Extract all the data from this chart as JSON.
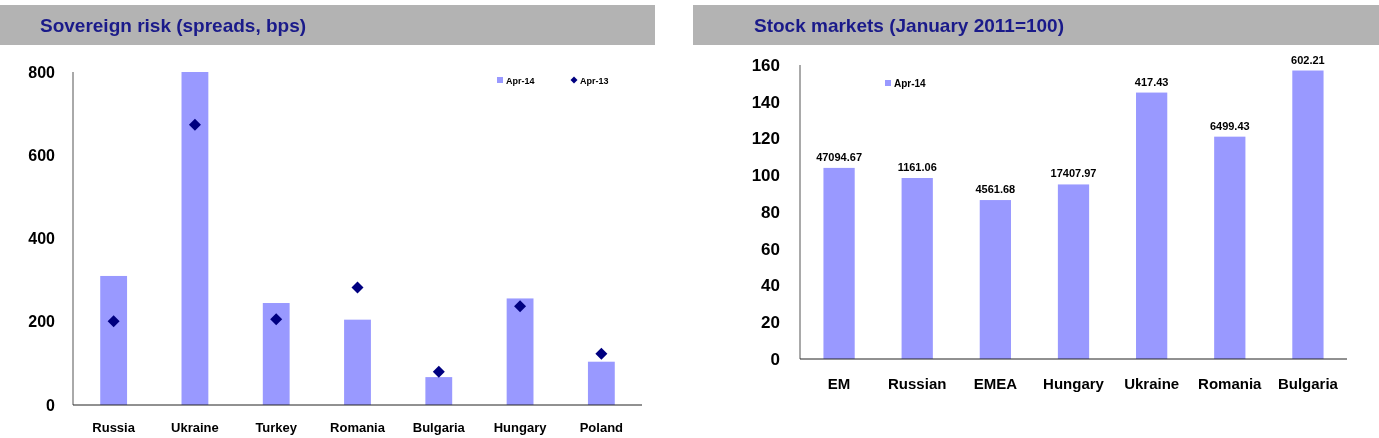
{
  "chart_data": [
    {
      "type": "bar",
      "title": "Sovereign risk (spreads, bps)",
      "categories": [
        "Russia",
        "Ukraine",
        "Turkey",
        "Romania",
        "Bulgaria",
        "Hungary",
        "Poland"
      ],
      "series": [
        {
          "name": "Apr-14",
          "color": "#9999ff",
          "values": [
            310,
            800,
            245,
            205,
            67,
            256,
            104
          ]
        },
        {
          "name": "Apr-13",
          "type": "scatter",
          "color": "#000080",
          "marker": "diamond",
          "values": [
            201,
            673,
            206,
            282,
            80,
            237,
            123
          ]
        }
      ],
      "ylim": [
        0,
        800
      ],
      "yticks": [
        0,
        200,
        400,
        600,
        800
      ],
      "grid": false,
      "legend": "top right"
    },
    {
      "type": "bar",
      "title": "Stock markets (January 2011=100)",
      "categories": [
        "EM",
        "Russian",
        "EMEA",
        "Hungary",
        "Ukraine",
        "Romania",
        "Bulgaria"
      ],
      "series": [
        {
          "name": "Apr-14",
          "color": "#9999ff",
          "values": [
            104,
            98.5,
            86.5,
            95,
            145,
            121,
            157
          ]
        }
      ],
      "annotations": [
        {
          "text": "47094.67",
          "x": "EM",
          "y": 104
        },
        {
          "text": "1161.06",
          "x": "Russian",
          "y": 98.5
        },
        {
          "text": "4561.68",
          "x": "EMEA",
          "y": 86.5
        },
        {
          "text": "17407.97",
          "x": "Hungary",
          "y": 95
        },
        {
          "text": "417.43",
          "x": "Ukraine",
          "y": 145
        },
        {
          "text": "6499.43",
          "x": "Romania",
          "y": 121
        },
        {
          "text": "602.21",
          "x": "Bulgaria",
          "y": 157
        }
      ],
      "ylim": [
        0,
        160
      ],
      "yticks": [
        0,
        20,
        40,
        60,
        80,
        100,
        120,
        140,
        160
      ],
      "grid": false,
      "legend": "top left"
    }
  ]
}
